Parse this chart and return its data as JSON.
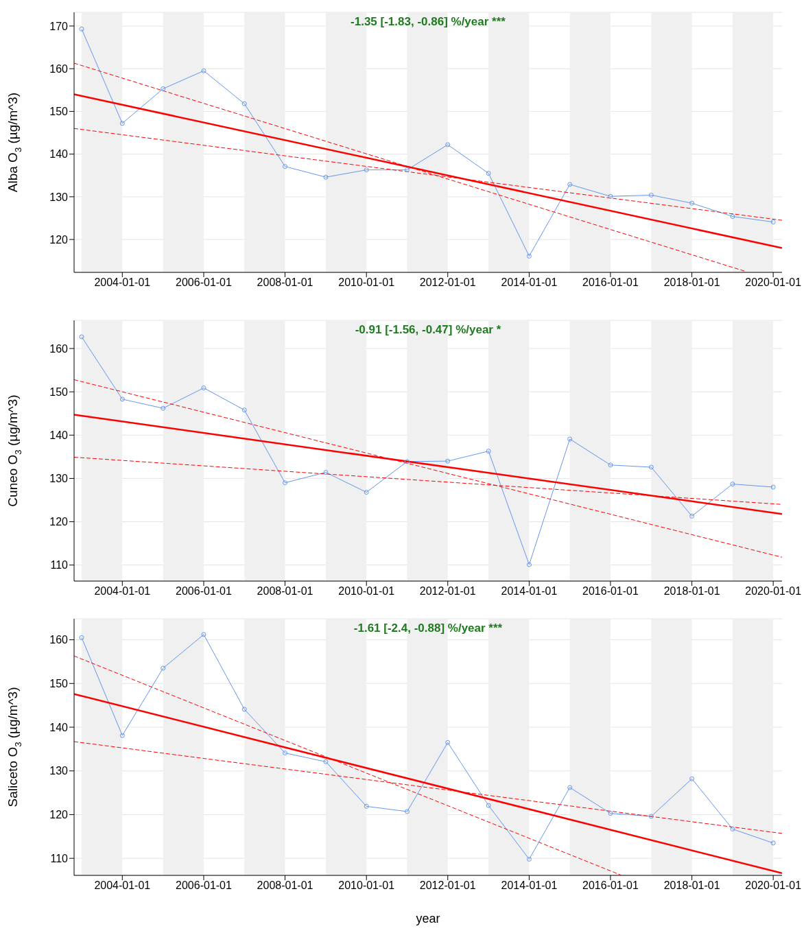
{
  "chart_data": [
    {
      "type": "line",
      "ylabel": "Alba O$_{3}$ (µg/m^3)",
      "annotations": [
        "-1.35 [-1.83, -0.86] %/year ***"
      ],
      "x": [
        "2003-01-01",
        "2004-01-01",
        "2005-01-01",
        "2006-01-01",
        "2007-01-01",
        "2008-01-01",
        "2009-01-01",
        "2010-01-01",
        "2011-01-01",
        "2012-01-01",
        "2013-01-01",
        "2014-01-01",
        "2015-01-01",
        "2016-01-01",
        "2017-01-01",
        "2018-01-01",
        "2019-01-01",
        "2020-01-01"
      ],
      "series": [
        {
          "color": "#6495ed",
          "marker": "circle",
          "values": [
            169.3,
            147.2,
            155.3,
            159.5,
            151.8,
            137.1,
            134.6,
            136.3,
            136.3,
            142.2,
            135.5,
            116.1,
            132.9,
            130.1,
            130.4,
            128.5,
            125.4,
            124.1
          ]
        },
        {
          "color": "#ff0000",
          "marker": "none",
          "line_style": "solid",
          "x": [
            "2002-10-25",
            "2020-03-20"
          ],
          "values": [
            154,
            118
          ]
        },
        {
          "color": "#ff0000",
          "marker": "none",
          "line_style": "dashed",
          "x": [
            "2002-10-25",
            "2019-05-01"
          ],
          "values": [
            161.3,
            112.5
          ]
        },
        {
          "color": "#ff0000",
          "marker": "none",
          "line_style": "dashed",
          "x": [
            "2002-10-25",
            "2020-03-20"
          ],
          "values": [
            146,
            124.5
          ]
        }
      ],
      "xlim": [
        "2002-10-25",
        "2020-03-20"
      ],
      "xticks": [
        "2004-01-01",
        "2006-01-01",
        "2008-01-01",
        "2010-01-01",
        "2012-01-01",
        "2014-01-01",
        "2016-01-01",
        "2018-01-01",
        "2020-01-01"
      ],
      "ylim": [
        112.3,
        173.2
      ],
      "yticks": [
        120,
        130,
        140,
        150,
        160,
        170
      ],
      "grid": "y",
      "bands": [
        {
          "axis": "x",
          "from": "2003-01-01",
          "to": "2004-01-01",
          "color": "#f0f0f0"
        },
        {
          "axis": "x",
          "from": "2005-01-01",
          "to": "2006-01-01",
          "color": "#f0f0f0"
        },
        {
          "axis": "x",
          "from": "2007-01-01",
          "to": "2008-01-01",
          "color": "#f0f0f0"
        },
        {
          "axis": "x",
          "from": "2009-01-01",
          "to": "2010-01-01",
          "color": "#f0f0f0"
        },
        {
          "axis": "x",
          "from": "2011-01-01",
          "to": "2012-01-01",
          "color": "#f0f0f0"
        },
        {
          "axis": "x",
          "from": "2013-01-01",
          "to": "2014-01-01",
          "color": "#f0f0f0"
        },
        {
          "axis": "x",
          "from": "2015-01-01",
          "to": "2016-01-01",
          "color": "#f0f0f0"
        },
        {
          "axis": "x",
          "from": "2017-01-01",
          "to": "2018-01-01",
          "color": "#f0f0f0"
        },
        {
          "axis": "x",
          "from": "2019-01-01",
          "to": "2020-01-01",
          "color": "#f0f0f0"
        }
      ]
    },
    {
      "type": "line",
      "ylabel": "Cuneo O$_{3}$ (µg/m^3)",
      "annotations": [
        "-0.91 [-1.56, -0.47] %/year *"
      ],
      "x": [
        "2003-01-01",
        "2004-01-01",
        "2005-01-01",
        "2006-01-01",
        "2007-01-01",
        "2008-01-01",
        "2009-01-01",
        "2010-01-01",
        "2011-01-01",
        "2012-01-01",
        "2013-01-01",
        "2014-01-01",
        "2015-01-01",
        "2016-01-01",
        "2017-01-01",
        "2018-01-01",
        "2019-01-01",
        "2020-01-01"
      ],
      "series": [
        {
          "color": "#6495ed",
          "marker": "circle",
          "values": [
            162.7,
            148.3,
            146.2,
            150.9,
            145.8,
            129.0,
            131.4,
            126.8,
            133.9,
            134.0,
            136.3,
            110.1,
            139.1,
            133.1,
            132.6,
            121.3,
            128.7,
            128.0
          ]
        },
        {
          "color": "#ff0000",
          "marker": "none",
          "line_style": "solid",
          "x": [
            "2002-10-25",
            "2020-03-20"
          ],
          "values": [
            144.7,
            121.8
          ]
        },
        {
          "color": "#ff0000",
          "marker": "none",
          "line_style": "dashed",
          "x": [
            "2002-10-25",
            "2020-03-20"
          ],
          "values": [
            152.8,
            111.8
          ]
        },
        {
          "color": "#ff0000",
          "marker": "none",
          "line_style": "dashed",
          "x": [
            "2002-10-25",
            "2020-03-20"
          ],
          "values": [
            134.9,
            124.0
          ]
        }
      ],
      "xlim": [
        "2002-10-25",
        "2020-03-20"
      ],
      "xticks": [
        "2004-01-01",
        "2006-01-01",
        "2008-01-01",
        "2010-01-01",
        "2012-01-01",
        "2014-01-01",
        "2016-01-01",
        "2018-01-01",
        "2020-01-01"
      ],
      "ylim": [
        106.3,
        166.5
      ],
      "yticks": [
        110,
        120,
        130,
        140,
        150,
        160
      ],
      "grid": "y",
      "bands": [
        {
          "axis": "x",
          "from": "2003-01-01",
          "to": "2004-01-01",
          "color": "#f0f0f0"
        },
        {
          "axis": "x",
          "from": "2005-01-01",
          "to": "2006-01-01",
          "color": "#f0f0f0"
        },
        {
          "axis": "x",
          "from": "2007-01-01",
          "to": "2008-01-01",
          "color": "#f0f0f0"
        },
        {
          "axis": "x",
          "from": "2009-01-01",
          "to": "2010-01-01",
          "color": "#f0f0f0"
        },
        {
          "axis": "x",
          "from": "2011-01-01",
          "to": "2012-01-01",
          "color": "#f0f0f0"
        },
        {
          "axis": "x",
          "from": "2013-01-01",
          "to": "2014-01-01",
          "color": "#f0f0f0"
        },
        {
          "axis": "x",
          "from": "2015-01-01",
          "to": "2016-01-01",
          "color": "#f0f0f0"
        },
        {
          "axis": "x",
          "from": "2017-01-01",
          "to": "2018-01-01",
          "color": "#f0f0f0"
        },
        {
          "axis": "x",
          "from": "2019-01-01",
          "to": "2020-01-01",
          "color": "#f0f0f0"
        }
      ]
    },
    {
      "type": "line",
      "xlabel": "year",
      "ylabel": "Saliceto O$_{3}$ (µg/m^3)",
      "annotations": [
        "-1.61 [-2.4, -0.88] %/year ***"
      ],
      "x": [
        "2003-01-01",
        "2004-01-01",
        "2005-01-01",
        "2006-01-01",
        "2007-01-01",
        "2008-01-01",
        "2009-01-01",
        "2010-01-01",
        "2011-01-01",
        "2012-01-01",
        "2013-01-01",
        "2014-01-01",
        "2015-01-01",
        "2016-01-01",
        "2017-01-01",
        "2018-01-01",
        "2019-01-01",
        "2020-01-01"
      ],
      "series": [
        {
          "color": "#6495ed",
          "marker": "circle",
          "values": [
            160.5,
            138.1,
            153.5,
            161.2,
            144.1,
            134.1,
            132.1,
            121.9,
            120.7,
            136.5,
            122.1,
            109.8,
            126.2,
            120.3,
            119.6,
            128.2,
            116.7,
            113.5
          ]
        },
        {
          "color": "#ff0000",
          "marker": "none",
          "line_style": "solid",
          "x": [
            "2002-10-25",
            "2020-03-20"
          ],
          "values": [
            147.6,
            106.6
          ]
        },
        {
          "color": "#ff0000",
          "marker": "none",
          "line_style": "dashed",
          "x": [
            "2002-10-25",
            "2016-04-01"
          ],
          "values": [
            156.3,
            106.2
          ]
        },
        {
          "color": "#ff0000",
          "marker": "none",
          "line_style": "dashed",
          "x": [
            "2002-10-25",
            "2020-03-20"
          ],
          "values": [
            136.7,
            115.7
          ]
        }
      ],
      "xlim": [
        "2002-10-25",
        "2020-03-20"
      ],
      "xticks": [
        "2004-01-01",
        "2006-01-01",
        "2008-01-01",
        "2010-01-01",
        "2012-01-01",
        "2014-01-01",
        "2016-01-01",
        "2018-01-01",
        "2020-01-01"
      ],
      "ylim": [
        106.1,
        164.8
      ],
      "yticks": [
        110,
        120,
        130,
        140,
        150,
        160
      ],
      "grid": "y",
      "bands": [
        {
          "axis": "x",
          "from": "2003-01-01",
          "to": "2004-01-01",
          "color": "#f0f0f0"
        },
        {
          "axis": "x",
          "from": "2005-01-01",
          "to": "2006-01-01",
          "color": "#f0f0f0"
        },
        {
          "axis": "x",
          "from": "2007-01-01",
          "to": "2008-01-01",
          "color": "#f0f0f0"
        },
        {
          "axis": "x",
          "from": "2009-01-01",
          "to": "2010-01-01",
          "color": "#f0f0f0"
        },
        {
          "axis": "x",
          "from": "2011-01-01",
          "to": "2012-01-01",
          "color": "#f0f0f0"
        },
        {
          "axis": "x",
          "from": "2013-01-01",
          "to": "2014-01-01",
          "color": "#f0f0f0"
        },
        {
          "axis": "x",
          "from": "2015-01-01",
          "to": "2016-01-01",
          "color": "#f0f0f0"
        },
        {
          "axis": "x",
          "from": "2017-01-01",
          "to": "2018-01-01",
          "color": "#f0f0f0"
        },
        {
          "axis": "x",
          "from": "2019-01-01",
          "to": "2020-01-01",
          "color": "#f0f0f0"
        }
      ]
    }
  ]
}
